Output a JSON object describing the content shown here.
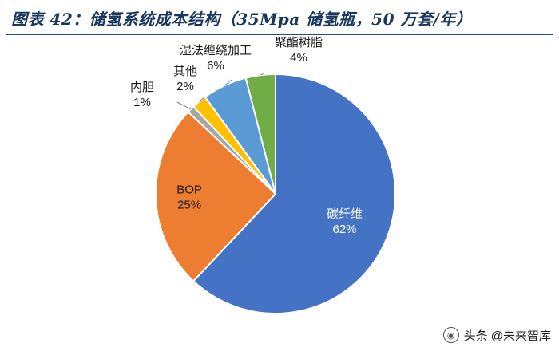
{
  "header": {
    "title": "图表 42：储氢系统成本结构（35Mpa 储氢瓶，50 万套/年）"
  },
  "chart_data": {
    "type": "pie",
    "title": "",
    "start_angle_deg": 0,
    "direction": "clockwise",
    "slices": [
      {
        "label": "碳纤维",
        "value": 62,
        "display": "62%",
        "color": "#4472c4",
        "label_placement": "inside",
        "label_color": "#ffffff"
      },
      {
        "label": "BOP",
        "value": 25,
        "display": "25%",
        "color": "#ed7d31",
        "label_placement": "inside",
        "label_color": "#1a1a1a"
      },
      {
        "label": "内胆",
        "value": 1,
        "display": "1%",
        "color": "#a5a5a5",
        "label_placement": "outside-left",
        "label_color": "#1a1a1a"
      },
      {
        "label": "其他",
        "value": 2,
        "display": "2%",
        "color": "#ffc000",
        "label_placement": "outside-top",
        "label_color": "#1a1a1a"
      },
      {
        "label": "湿法缠绕加工",
        "value": 6,
        "display": "6%",
        "color": "#5b9bd5",
        "label_placement": "outside-top",
        "label_color": "#1a1a1a"
      },
      {
        "label": "聚酯树脂",
        "value": 4,
        "display": "4%",
        "color": "#70ad47",
        "label_placement": "outside-top",
        "label_color": "#1a1a1a"
      }
    ],
    "legend": "none"
  },
  "watermark": {
    "text": "头条 @未来智库"
  }
}
